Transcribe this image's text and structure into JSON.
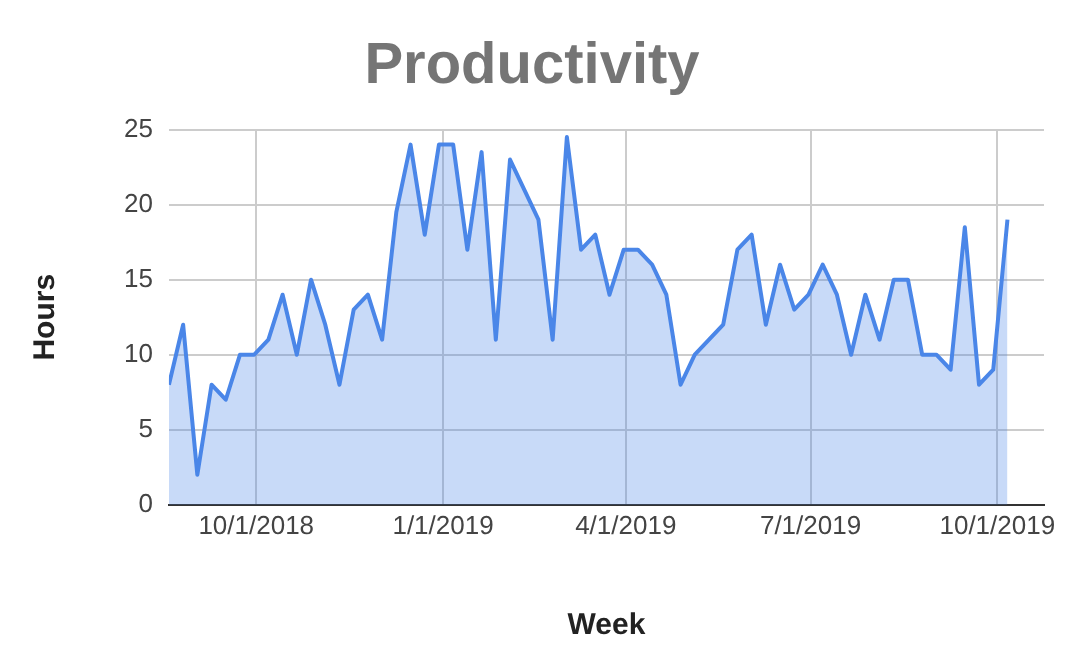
{
  "chart_data": {
    "type": "area",
    "title": "Productivity",
    "xlabel": "Week",
    "ylabel": "Hours",
    "x": [
      "2018-08-19",
      "2018-08-26",
      "2018-09-02",
      "2018-09-09",
      "2018-09-16",
      "2018-09-23",
      "2018-09-30",
      "2018-10-07",
      "2018-10-14",
      "2018-10-21",
      "2018-10-28",
      "2018-11-04",
      "2018-11-11",
      "2018-11-18",
      "2018-11-25",
      "2018-12-02",
      "2018-12-09",
      "2018-12-16",
      "2018-12-23",
      "2018-12-30",
      "2019-01-06",
      "2019-01-13",
      "2019-01-20",
      "2019-01-27",
      "2019-02-03",
      "2019-02-10",
      "2019-02-17",
      "2019-02-24",
      "2019-03-03",
      "2019-03-10",
      "2019-03-17",
      "2019-03-24",
      "2019-03-31",
      "2019-04-07",
      "2019-04-14",
      "2019-04-21",
      "2019-04-28",
      "2019-05-05",
      "2019-05-12",
      "2019-05-19",
      "2019-05-26",
      "2019-06-02",
      "2019-06-09",
      "2019-06-16",
      "2019-06-23",
      "2019-06-30",
      "2019-07-07",
      "2019-07-14",
      "2019-07-21",
      "2019-07-28",
      "2019-08-04",
      "2019-08-11",
      "2019-08-18",
      "2019-08-25",
      "2019-09-01",
      "2019-09-08",
      "2019-09-15",
      "2019-09-22",
      "2019-09-29",
      "2019-10-06"
    ],
    "series": [
      {
        "color": "#4a86e8",
        "values": [
          8,
          12,
          2,
          8,
          7,
          10,
          10,
          11,
          14,
          10,
          15,
          12,
          8,
          13,
          14,
          11,
          19.5,
          24,
          18,
          24,
          24,
          17,
          23.5,
          11,
          23,
          21,
          19,
          11,
          24.5,
          17,
          18,
          14,
          17,
          17,
          16,
          14,
          8,
          10,
          11,
          12,
          17,
          18,
          12,
          16,
          13,
          14,
          16,
          14,
          10,
          14,
          11,
          15,
          15,
          10,
          10,
          9,
          18.5,
          8,
          9,
          19
        ]
      }
    ],
    "xlim": [
      "2018-08-19",
      "2019-10-24"
    ],
    "xticks": [
      {
        "value": "2018-10-01",
        "label": "10/1/2018"
      },
      {
        "value": "2019-01-01",
        "label": "1/1/2019"
      },
      {
        "value": "2019-04-01",
        "label": "4/1/2019"
      },
      {
        "value": "2019-07-01",
        "label": "7/1/2019"
      },
      {
        "value": "2019-10-01",
        "label": "10/1/2019"
      }
    ],
    "ylim": [
      0,
      25
    ],
    "yticks": [
      0,
      5,
      10,
      15,
      20,
      25
    ],
    "grid": true,
    "legend": false,
    "marker": "none"
  }
}
